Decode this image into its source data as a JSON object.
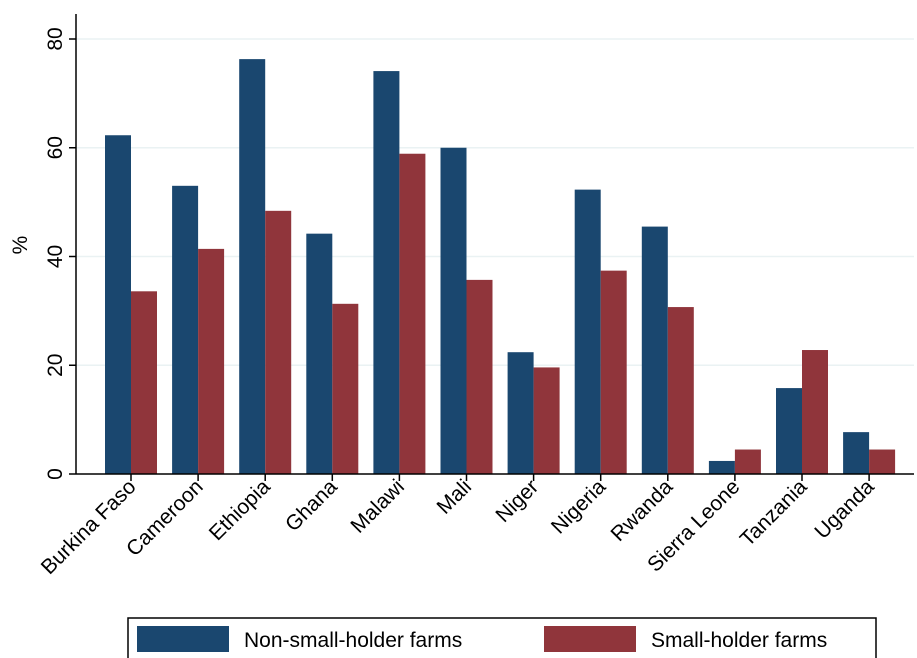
{
  "chart_data": {
    "type": "bar",
    "categories": [
      "Burkina Faso",
      "Cameroon",
      "Ethiopia",
      "Ghana",
      "Malawi",
      "Mali",
      "Niger",
      "Nigeria",
      "Rwanda",
      "Sierra Leone",
      "Tanzania",
      "Uganda"
    ],
    "series": [
      {
        "name": "Non-small-holder farms",
        "color": "#1a476f",
        "values": [
          62.3,
          53.0,
          76.3,
          44.2,
          74.1,
          60.0,
          22.4,
          52.3,
          45.5,
          2.4,
          15.8,
          7.7
        ]
      },
      {
        "name": "Small-holder farms",
        "color": "#90353b",
        "values": [
          33.6,
          41.4,
          48.4,
          31.3,
          58.9,
          35.7,
          19.6,
          37.4,
          30.7,
          4.5,
          22.8,
          4.5
        ]
      }
    ],
    "xlabel": "",
    "ylabel": "%",
    "ylim": [
      0,
      80
    ],
    "yticks": [
      0,
      20,
      40,
      60,
      80
    ],
    "grid": true,
    "legend_position": "bottom"
  }
}
